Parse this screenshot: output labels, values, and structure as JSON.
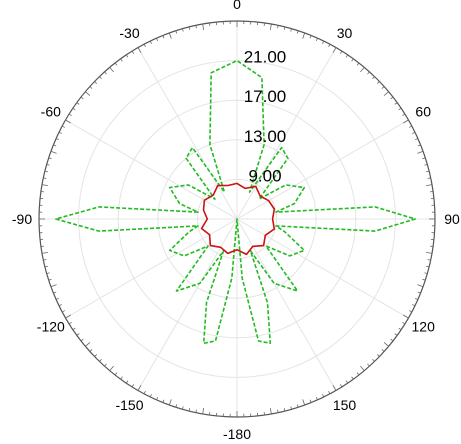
{
  "chart_data": {
    "type": "polar-line",
    "angle_ticks": [
      {
        "angle": 0,
        "label": "0"
      },
      {
        "angle": 30,
        "label": "30"
      },
      {
        "angle": 60,
        "label": "60"
      },
      {
        "angle": 90,
        "label": "90"
      },
      {
        "angle": 120,
        "label": "120"
      },
      {
        "angle": 150,
        "label": "150"
      },
      {
        "angle": 180,
        "label": "-180"
      },
      {
        "angle": -150,
        "label": "-150"
      },
      {
        "angle": -120,
        "label": "-120"
      },
      {
        "angle": -90,
        "label": "-90"
      },
      {
        "angle": -60,
        "label": "-60"
      },
      {
        "angle": -30,
        "label": "-30"
      }
    ],
    "radial_ticks": [
      {
        "value": 9,
        "label": "9.00"
      },
      {
        "value": 13,
        "label": "13.00"
      },
      {
        "value": 17,
        "label": "17.00"
      },
      {
        "value": 21,
        "label": "21.00"
      }
    ],
    "radial_range": [
      5,
      25
    ],
    "grid": true,
    "series": [
      {
        "color": "#22bb22",
        "style": "dashed",
        "points": [
          [
            -180,
            5.0
          ],
          [
            -175,
            11.0
          ],
          [
            -170,
            17.5
          ],
          [
            -165,
            18.0
          ],
          [
            -160,
            14.0
          ],
          [
            -157,
            8.5
          ],
          [
            -150,
            12.5
          ],
          [
            -140,
            14.5
          ],
          [
            -133,
            9.0
          ],
          [
            -125,
            11.5
          ],
          [
            -115,
            12.5
          ],
          [
            -105,
            10.0
          ],
          [
            -100,
            9.0
          ],
          [
            -95,
            19.0
          ],
          [
            -90,
            23.3
          ],
          [
            -85,
            19.0
          ],
          [
            -80,
            9.0
          ],
          [
            -75,
            11.0
          ],
          [
            -65,
            12.5
          ],
          [
            -55,
            11.0
          ],
          [
            -48,
            8.0
          ],
          [
            -40,
            13.0
          ],
          [
            -32,
            13.5
          ],
          [
            -25,
            8.0
          ],
          [
            -20,
            13.0
          ],
          [
            -10,
            20.0
          ],
          [
            0,
            21.0
          ],
          [
            10,
            19.5
          ],
          [
            20,
            13.0
          ],
          [
            25,
            8.0
          ],
          [
            32,
            13.5
          ],
          [
            40,
            13.0
          ],
          [
            48,
            8.0
          ],
          [
            55,
            11.0
          ],
          [
            65,
            12.5
          ],
          [
            75,
            11.0
          ],
          [
            80,
            9.0
          ],
          [
            85,
            19.0
          ],
          [
            90,
            23.0
          ],
          [
            95,
            19.0
          ],
          [
            100,
            9.0
          ],
          [
            105,
            10.0
          ],
          [
            115,
            12.5
          ],
          [
            125,
            11.5
          ],
          [
            133,
            9.0
          ],
          [
            140,
            14.5
          ],
          [
            150,
            12.5
          ],
          [
            157,
            8.5
          ],
          [
            160,
            14.0
          ],
          [
            165,
            18.0
          ],
          [
            170,
            17.5
          ],
          [
            175,
            11.0
          ],
          [
            180,
            5.0
          ]
        ]
      },
      {
        "color": "#cc1111",
        "style": "solid",
        "points": [
          [
            -180,
            8.1
          ],
          [
            -165,
            8.6
          ],
          [
            -150,
            8.3
          ],
          [
            -135,
            8.8
          ],
          [
            -120,
            8.2
          ],
          [
            -105,
            8.7
          ],
          [
            -90,
            8.0
          ],
          [
            -75,
            8.5
          ],
          [
            -60,
            8.8
          ],
          [
            -45,
            8.4
          ],
          [
            -30,
            8.9
          ],
          [
            -15,
            8.5
          ],
          [
            0,
            8.6
          ],
          [
            15,
            8.2
          ],
          [
            30,
            8.8
          ],
          [
            45,
            8.3
          ],
          [
            60,
            8.7
          ],
          [
            75,
            8.9
          ],
          [
            90,
            8.6
          ],
          [
            105,
            8.9
          ],
          [
            120,
            8.3
          ],
          [
            135,
            8.8
          ],
          [
            150,
            8.2
          ],
          [
            165,
            8.7
          ],
          [
            180,
            8.1
          ]
        ]
      }
    ]
  }
}
